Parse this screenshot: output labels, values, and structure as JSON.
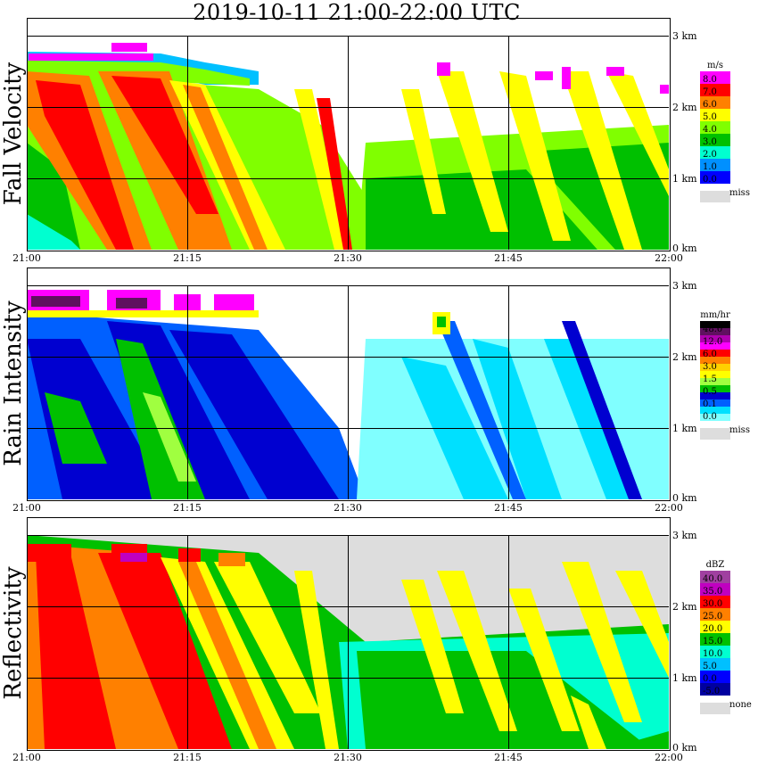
{
  "title": "2019-10-11   21:00-22:00 UTC",
  "x_ticks": [
    "21:00",
    "21:15",
    "21:30",
    "21:45",
    "22:00"
  ],
  "height_ticks": [
    "3 km",
    "2 km",
    "1 km",
    "0 km"
  ],
  "chart_data": [
    {
      "type": "heatmap",
      "ylabel": "Fall Velocity",
      "x_range": [
        "21:00",
        "22:00"
      ],
      "y_range_km": [
        0,
        3.0
      ],
      "colorbar": {
        "unit": "m/s",
        "labels": [
          "8.0",
          "7.0",
          "6.0",
          "5.0",
          "4.0",
          "3.0",
          "2.0",
          "1.0",
          "0.0"
        ],
        "colors": [
          "#ff00ff",
          "#ff0000",
          "#ff8000",
          "#ffff00",
          "#80ff00",
          "#00c000",
          "#00ffd0",
          "#0090ff",
          "#0000ff"
        ],
        "missing_label": "miss",
        "missing_color": "#dddddd"
      }
    },
    {
      "type": "heatmap",
      "ylabel": "Rain Intensity",
      "x_range": [
        "21:00",
        "22:00"
      ],
      "y_range_km": [
        0,
        3.0
      ],
      "colorbar": {
        "unit": "mm/hr",
        "labels": [
          "48.0",
          "12.0",
          "6.0",
          "3.0",
          "1.5",
          "0.5",
          "0.1",
          "0.0"
        ],
        "colors": [
          "#000000",
          "#601060",
          "#b000b0",
          "#ff00ff",
          "#ff0000",
          "#ff8000",
          "#ffd000",
          "#ffff00",
          "#a0ff40",
          "#00c000",
          "#0000d0",
          "#0060ff",
          "#00e0ff",
          "#80ffff"
        ],
        "missing_label": "miss",
        "missing_color": "#dddddd"
      }
    },
    {
      "type": "heatmap",
      "ylabel": "Reflectivity",
      "x_range": [
        "21:00",
        "22:00"
      ],
      "y_range_km": [
        0,
        3.0
      ],
      "colorbar": {
        "unit": "dBZ",
        "labels": [
          "40.0",
          "35.0",
          "30.0",
          "25.0",
          "20.0",
          "15.0",
          "10.0",
          "5.0",
          "0.0",
          "-5.0"
        ],
        "colors": [
          "#a040a0",
          "#c000c0",
          "#ff0000",
          "#ff8000",
          "#ffff00",
          "#00c000",
          "#00ffd0",
          "#00c0ff",
          "#0000ff",
          "#0000a0"
        ],
        "missing_label": "none",
        "missing_color": "#dddddd"
      }
    }
  ]
}
